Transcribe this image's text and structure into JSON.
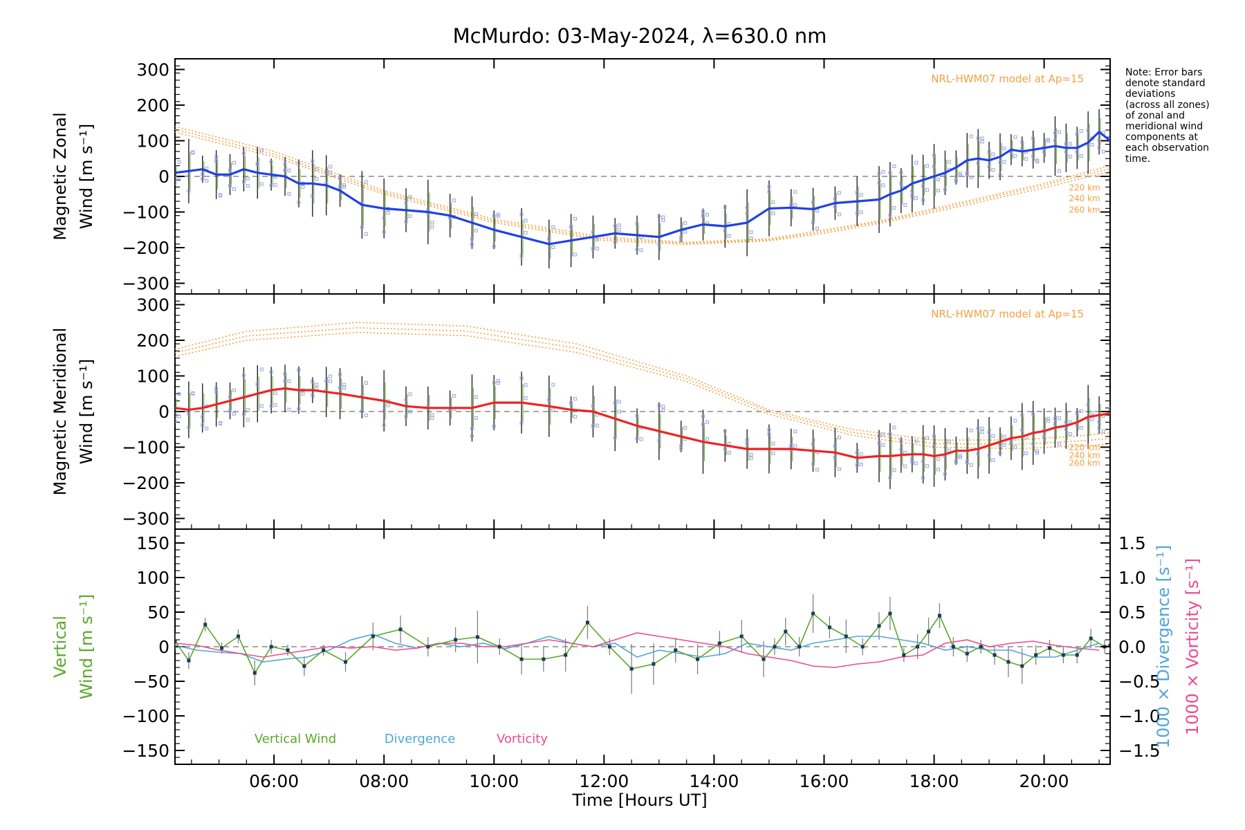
{
  "title": "McMurdo: 03-May-2024, λ=630.0 nm",
  "note": [
    "Note: Error bars",
    "denote standard",
    "deviations",
    "(across all zones)",
    "of zonal and",
    "meridional wind",
    "components at",
    "each observation",
    "time."
  ],
  "x_axis": {
    "label": "Time [Hours UT]",
    "range": [
      4.2,
      21.2
    ],
    "ticks": [
      6,
      8,
      10,
      12,
      14,
      16,
      18,
      20
    ],
    "tick_labels": [
      "06:00",
      "08:00",
      "10:00",
      "12:00",
      "14:00",
      "16:00",
      "18:00",
      "20:00"
    ]
  },
  "colors": {
    "zonal": "#2040e8",
    "meridional": "#ee2222",
    "model": "#f5a040",
    "vertical": "#5aa828",
    "divergence": "#4ea6d8",
    "vorticity": "#ee4a8c",
    "raw": "#9aa0e0",
    "errorbar": "#222222"
  },
  "chart_data": [
    {
      "type": "line",
      "name": "zonal-panel",
      "ylabel_line1": "Magnetic Zonal",
      "ylabel_line2": "Wind [m s⁻¹]",
      "ylim": [
        -330,
        330
      ],
      "yticks": [
        -300,
        -200,
        -100,
        0,
        100,
        200,
        300
      ],
      "ytick_labels": [
        "−300",
        "−200",
        "−100",
        "0",
        "100",
        "200",
        "300"
      ],
      "model_label": "NRL-HWM07 model at Ap=15",
      "model_heights": [
        "220 km",
        "240 km",
        "260 km"
      ],
      "model": [
        {
          "x": [
            4.2,
            6,
            8,
            10,
            12,
            13.5,
            15,
            16,
            17,
            18,
            19,
            20,
            21.2
          ],
          "y": [
            140,
            70,
            -40,
            -120,
            -170,
            -185,
            -175,
            -150,
            -125,
            -90,
            -55,
            -20,
            30
          ]
        },
        {
          "x": [
            4.2,
            6,
            8,
            10,
            12,
            13.5,
            15,
            16,
            17,
            18,
            19,
            20,
            21.2
          ],
          "y": [
            132,
            62,
            -45,
            -125,
            -175,
            -188,
            -178,
            -155,
            -128,
            -95,
            -60,
            -25,
            22
          ]
        },
        {
          "x": [
            4.2,
            6,
            8,
            10,
            12,
            13.5,
            15,
            16,
            17,
            18,
            19,
            20,
            21.2
          ],
          "y": [
            124,
            55,
            -50,
            -130,
            -180,
            -191,
            -181,
            -160,
            -132,
            -100,
            -66,
            -32,
            14
          ]
        }
      ],
      "series": [
        {
          "x": [
            4.2,
            4.45,
            4.7,
            4.95,
            5.2,
            5.45,
            5.7,
            5.95,
            6.2,
            6.45,
            6.7,
            6.95,
            7.2,
            7.6,
            8.0,
            8.4,
            8.8,
            9.2,
            9.6,
            10.0,
            10.5,
            11.0,
            11.4,
            11.8,
            12.2,
            12.6,
            13.0,
            13.4,
            13.8,
            14.2,
            14.6,
            15.0,
            15.4,
            15.8,
            16.2,
            16.6,
            17.0,
            17.2,
            17.4,
            17.6,
            17.8,
            18.0,
            18.2,
            18.4,
            18.6,
            18.8,
            19.0,
            19.2,
            19.4,
            19.6,
            19.8,
            20.0,
            20.2,
            20.4,
            20.6,
            20.8,
            21.0,
            21.2
          ],
          "y": [
            10,
            15,
            20,
            5,
            5,
            20,
            10,
            5,
            0,
            -20,
            -20,
            -25,
            -40,
            -80,
            -90,
            -95,
            -100,
            -110,
            -130,
            -150,
            -170,
            -190,
            -180,
            -170,
            -160,
            -165,
            -170,
            -150,
            -135,
            -140,
            -130,
            -90,
            -88,
            -92,
            -75,
            -70,
            -65,
            -50,
            -40,
            -20,
            -10,
            0,
            10,
            25,
            45,
            50,
            45,
            55,
            75,
            70,
            75,
            80,
            85,
            80,
            80,
            95,
            125,
            100
          ]
        }
      ]
    },
    {
      "type": "line",
      "name": "meridional-panel",
      "ylabel_line1": "Magnetic Meridional",
      "ylabel_line2": "Wind [m s⁻¹]",
      "ylim": [
        -330,
        330
      ],
      "yticks": [
        -300,
        -200,
        -100,
        0,
        100,
        200,
        300
      ],
      "ytick_labels": [
        "−300",
        "−200",
        "−100",
        "0",
        "100",
        "200",
        "300"
      ],
      "model_label": "NRL-HWM07 model at Ap=15",
      "model_heights": [
        "220 km",
        "240 km",
        "260 km"
      ],
      "model": [
        {
          "x": [
            4.2,
            5.5,
            7.5,
            9.5,
            11.5,
            13.5,
            15.0,
            16.5,
            18.0,
            19.5,
            20.5,
            21.2
          ],
          "y": [
            175,
            225,
            250,
            240,
            190,
            100,
            5,
            -50,
            -80,
            -80,
            -70,
            -60
          ]
        },
        {
          "x": [
            4.2,
            5.5,
            7.5,
            9.5,
            11.5,
            13.5,
            15.0,
            16.5,
            18.0,
            19.5,
            20.5,
            21.2
          ],
          "y": [
            165,
            212,
            235,
            226,
            178,
            92,
            0,
            -58,
            -90,
            -92,
            -84,
            -76
          ]
        },
        {
          "x": [
            4.2,
            5.5,
            7.5,
            9.5,
            11.5,
            13.5,
            15.0,
            16.5,
            18.0,
            19.5,
            20.5,
            21.2
          ],
          "y": [
            155,
            200,
            222,
            213,
            166,
            84,
            -8,
            -66,
            -100,
            -104,
            -98,
            -92
          ]
        }
      ],
      "series": [
        {
          "x": [
            4.2,
            4.45,
            4.7,
            4.95,
            5.2,
            5.45,
            5.7,
            5.95,
            6.2,
            6.45,
            6.7,
            6.95,
            7.2,
            7.6,
            8.0,
            8.4,
            8.8,
            9.2,
            9.6,
            10.0,
            10.5,
            11.0,
            11.4,
            11.8,
            12.2,
            12.6,
            13.0,
            13.4,
            13.8,
            14.2,
            14.6,
            15.0,
            15.4,
            15.8,
            16.2,
            16.6,
            17.0,
            17.2,
            17.4,
            17.6,
            17.8,
            18.0,
            18.2,
            18.4,
            18.6,
            18.8,
            19.0,
            19.2,
            19.4,
            19.6,
            19.8,
            20.0,
            20.2,
            20.4,
            20.6,
            20.8,
            21.0,
            21.2
          ],
          "y": [
            10,
            5,
            10,
            20,
            30,
            40,
            50,
            60,
            65,
            60,
            60,
            55,
            50,
            40,
            30,
            15,
            10,
            10,
            10,
            25,
            25,
            15,
            5,
            0,
            -20,
            -40,
            -55,
            -70,
            -85,
            -95,
            -105,
            -105,
            -105,
            -110,
            -115,
            -130,
            -125,
            -125,
            -122,
            -120,
            -120,
            -125,
            -120,
            -110,
            -110,
            -105,
            -95,
            -85,
            -75,
            -70,
            -60,
            -55,
            -45,
            -40,
            -30,
            -15,
            -10,
            -5
          ]
        }
      ]
    },
    {
      "type": "line",
      "name": "vertical-panel",
      "ylabel_line1": "Vertical",
      "ylabel_line2": "Wind [m s⁻¹]",
      "ylim": [
        -170,
        170
      ],
      "yticks": [
        -150,
        -100,
        -50,
        0,
        50,
        100,
        150
      ],
      "ytick_labels": [
        "−150",
        "−100",
        "−50",
        "0",
        "50",
        "100",
        "150"
      ],
      "y2label_divergence": "1000 × Divergence [s⁻¹]",
      "y2label_vorticity": "1000 × Vorticity [s⁻¹]",
      "y2lim": [
        -1.7,
        1.7
      ],
      "y2ticks": [
        -1.5,
        -1.0,
        -0.5,
        0.0,
        0.5,
        1.0,
        1.5
      ],
      "y2tick_labels": [
        "−1.5",
        "−1.0",
        "−0.5",
        "0.0",
        "0.5",
        "1.0",
        "1.5"
      ],
      "legend": [
        "Vertical Wind",
        "Divergence",
        "Vorticity"
      ],
      "series": [
        {
          "name": "Vertical Wind",
          "x": [
            4.2,
            4.45,
            4.75,
            5.05,
            5.35,
            5.65,
            5.95,
            6.25,
            6.55,
            6.9,
            7.3,
            7.8,
            8.3,
            8.8,
            9.3,
            9.7,
            10.1,
            10.5,
            10.9,
            11.3,
            11.7,
            12.1,
            12.5,
            12.9,
            13.3,
            13.7,
            14.1,
            14.5,
            14.9,
            15.1,
            15.3,
            15.55,
            15.8,
            16.1,
            16.4,
            16.7,
            17.0,
            17.2,
            17.45,
            17.7,
            17.9,
            18.1,
            18.35,
            18.6,
            18.85,
            19.1,
            19.35,
            19.6,
            19.85,
            20.1,
            20.35,
            20.6,
            20.85,
            21.1,
            21.2
          ],
          "y": [
            8,
            -20,
            32,
            -2,
            15,
            -38,
            0,
            -5,
            -28,
            -5,
            -22,
            15,
            25,
            0,
            10,
            14,
            0,
            -18,
            -18,
            -12,
            35,
            0,
            -32,
            -25,
            -5,
            -18,
            5,
            15,
            -18,
            0,
            22,
            0,
            48,
            28,
            15,
            0,
            30,
            48,
            -12,
            0,
            22,
            45,
            0,
            -10,
            0,
            -12,
            -22,
            -28,
            -12,
            -2,
            -12,
            -12,
            12,
            0,
            2
          ],
          "err": [
            12,
            12,
            10,
            8,
            10,
            18,
            10,
            8,
            14,
            8,
            14,
            20,
            20,
            14,
            18,
            38,
            12,
            22,
            18,
            24,
            24,
            12,
            36,
            30,
            18,
            22,
            18,
            24,
            26,
            12,
            20,
            14,
            28,
            16,
            24,
            12,
            20,
            24,
            10,
            18,
            20,
            18,
            14,
            12,
            10,
            14,
            22,
            26,
            14,
            12,
            12,
            12,
            14,
            10,
            8
          ]
        },
        {
          "name": "Divergence",
          "x": [
            4.2,
            4.6,
            5.0,
            5.4,
            5.8,
            6.2,
            6.6,
            7.0,
            7.4,
            7.8,
            8.2,
            8.6,
            9.0,
            9.4,
            9.8,
            10.2,
            10.6,
            11.0,
            11.4,
            11.8,
            12.2,
            12.6,
            13.0,
            13.4,
            13.8,
            14.2,
            14.6,
            15.0,
            15.4,
            15.8,
            16.2,
            16.6,
            17.0,
            17.4,
            17.8,
            18.2,
            18.6,
            19.0,
            19.4,
            19.8,
            20.2,
            20.6,
            21.0
          ],
          "y": [
            0.02,
            -0.05,
            -0.08,
            -0.1,
            -0.22,
            -0.18,
            -0.15,
            -0.05,
            0.1,
            0.18,
            0.05,
            -0.02,
            0.05,
            0.0,
            0.05,
            -0.03,
            0.05,
            0.15,
            0.05,
            0.0,
            0.05,
            -0.15,
            -0.05,
            -0.1,
            -0.15,
            -0.1,
            0.05,
            0.0,
            -0.05,
            0.05,
            0.1,
            0.15,
            0.15,
            0.1,
            0.05,
            -0.05,
            0.0,
            -0.05,
            -0.05,
            -0.15,
            -0.15,
            -0.05,
            0.05
          ]
        },
        {
          "name": "Vorticity",
          "x": [
            4.2,
            4.6,
            5.0,
            5.4,
            5.8,
            6.2,
            6.6,
            7.0,
            7.4,
            7.8,
            8.2,
            8.6,
            9.0,
            9.4,
            9.8,
            10.2,
            10.6,
            11.0,
            11.4,
            11.8,
            12.2,
            12.6,
            13.0,
            13.4,
            13.8,
            14.2,
            14.6,
            15.0,
            15.4,
            15.8,
            16.2,
            16.6,
            17.0,
            17.4,
            17.8,
            18.2,
            18.6,
            19.0,
            19.4,
            19.8,
            20.2,
            20.6,
            21.0
          ],
          "y": [
            0.05,
            0.02,
            -0.05,
            -0.1,
            -0.15,
            -0.1,
            -0.05,
            0.0,
            -0.02,
            0.0,
            -0.05,
            -0.02,
            0.05,
            0.05,
            0.0,
            0.0,
            0.05,
            0.1,
            0.05,
            0.0,
            0.1,
            0.2,
            0.15,
            0.1,
            0.05,
            0.0,
            -0.1,
            -0.15,
            -0.2,
            -0.28,
            -0.3,
            -0.25,
            -0.22,
            -0.15,
            -0.12,
            0.05,
            0.1,
            0.0,
            0.05,
            0.08,
            0.02,
            -0.02,
            -0.05
          ]
        }
      ]
    }
  ]
}
